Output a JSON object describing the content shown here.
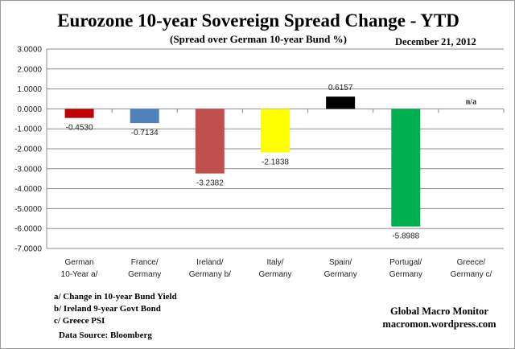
{
  "chart_data": {
    "type": "bar",
    "title": "Eurozone 10-year Sovereign Spread Change - YTD",
    "subtitle": "(Spread over German 10-year Bund %)",
    "date": "December 21, 2012",
    "categories": [
      [
        "German",
        "10-Year a/"
      ],
      [
        "France/",
        "Germany"
      ],
      [
        "Ireland/",
        "Germany b/"
      ],
      [
        "Italy/",
        "Germany"
      ],
      [
        "Spain/",
        "Germany"
      ],
      [
        "Portugal/",
        "Germany"
      ],
      [
        "Greece/",
        "Germany c/"
      ]
    ],
    "values": [
      -0.453,
      -0.7134,
      -3.2382,
      -2.1838,
      0.6157,
      -5.8988,
      null
    ],
    "data_labels": [
      "-0.4530",
      "-0.7134",
      "-3.2382",
      "-2.1838",
      "0.6157",
      "-5.8988",
      "n/a"
    ],
    "colors": [
      "#c00000",
      "#4f81bd",
      "#c0504d",
      "#ffff00",
      "#000000",
      "#00b050",
      "#ffffff"
    ],
    "ylim": [
      -7,
      3
    ],
    "yticks": [
      "3.0000",
      "2.0000",
      "1.0000",
      "0.0000",
      "-1.0000",
      "-2.0000",
      "-3.0000",
      "-4.0000",
      "-5.0000",
      "-6.0000",
      "-7.0000"
    ],
    "grid": true,
    "xlabel": "",
    "ylabel": ""
  },
  "notes": [
    "a/  Change in 10-year Bund Yield",
    "b/  Ireland 9-year Govt Bond",
    "c/  Greece PSI"
  ],
  "source": "Data Source:  Bloomberg",
  "brand": {
    "name": "Global Macro Monitor",
    "url": "macromon.wordpress.com"
  }
}
